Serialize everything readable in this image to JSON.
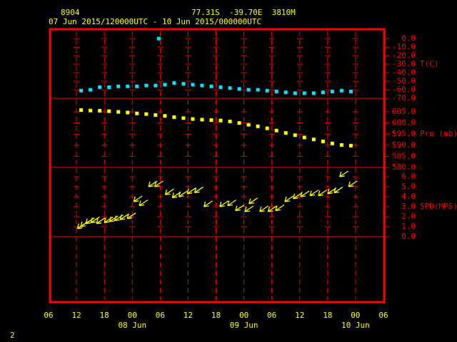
{
  "header": {
    "station": "8904",
    "location": "77.31S  -39.70E  3810M",
    "period": "07 Jun 2015/120000UTC - 10 Jun 2015/000000UTC"
  },
  "page_number": "2",
  "chart_data": [
    {
      "type": "scatter",
      "ylabel": "T(C)",
      "color": "#00e5ff",
      "xlim": [
        0,
        72
      ],
      "xticks": [
        {
          "value": 0,
          "label": "06"
        },
        {
          "value": 6,
          "label": "12"
        },
        {
          "value": 12,
          "label": "18"
        },
        {
          "value": 18,
          "label": "00"
        },
        {
          "value": 24,
          "label": "06"
        },
        {
          "value": 30,
          "label": "12"
        },
        {
          "value": 36,
          "label": "18"
        },
        {
          "value": 42,
          "label": "00"
        },
        {
          "value": 48,
          "label": "06"
        },
        {
          "value": 54,
          "label": "12"
        },
        {
          "value": 60,
          "label": "18"
        },
        {
          "value": 66,
          "label": "00"
        },
        {
          "value": 72,
          "label": "06"
        }
      ],
      "date_ticks": [
        {
          "value": 18,
          "label": "08 Jun"
        },
        {
          "value": 42,
          "label": "09 Jun"
        },
        {
          "value": 66,
          "label": "10 Jun"
        }
      ],
      "ylim": [
        -70,
        11
      ],
      "yticks": [
        {
          "value": 0,
          "label": "0.0"
        },
        {
          "value": -10,
          "label": "-10.0"
        },
        {
          "value": -20,
          "label": "-20.0"
        },
        {
          "value": -30,
          "label": "-30.0"
        },
        {
          "value": -40,
          "label": "-40.0"
        },
        {
          "value": -50,
          "label": "-50.0"
        },
        {
          "value": -60,
          "label": "-60.0"
        },
        {
          "value": -70,
          "label": "-70.0"
        }
      ],
      "x": [
        7,
        9,
        11,
        13,
        15,
        17,
        19,
        21,
        23,
        25,
        27,
        29,
        31,
        33,
        35,
        37,
        39,
        41,
        43,
        45,
        47,
        49,
        51,
        53,
        55,
        57,
        59,
        61,
        63,
        65,
        23.7
      ],
      "values": [
        -61,
        -60,
        -57,
        -57,
        -56,
        -56,
        -56,
        -55,
        -55,
        -54,
        -52,
        -53,
        -54,
        -55,
        -56,
        -57,
        -58,
        -59,
        -60,
        -60,
        -61,
        -62,
        -63,
        -64,
        -64,
        -64,
        -63,
        -62,
        -61,
        -62,
        0
      ]
    },
    {
      "type": "scatter",
      "ylabel": "Pre (mb)",
      "color": "#ffff00",
      "ylim": [
        580,
        611.1
      ],
      "yticks": [
        {
          "value": 605,
          "label": "605.0"
        },
        {
          "value": 600,
          "label": "600.0"
        },
        {
          "value": 595,
          "label": "595.0"
        },
        {
          "value": 590,
          "label": "590.0"
        },
        {
          "value": 585,
          "label": "585.0"
        },
        {
          "value": 580,
          "label": "580.0"
        }
      ],
      "x": [
        7,
        9,
        11,
        13,
        15,
        17,
        19,
        21,
        23,
        25,
        27,
        29,
        31,
        33,
        35,
        37,
        39,
        41,
        43,
        45,
        47,
        49,
        51,
        53,
        55,
        57,
        59,
        61,
        63,
        65
      ],
      "values": [
        605.8,
        605.6,
        605.5,
        605.3,
        605,
        604.7,
        604.3,
        604,
        603.6,
        603.2,
        602.6,
        602.2,
        601.8,
        601.5,
        601.3,
        601.1,
        600.7,
        600,
        599.2,
        598.5,
        597.6,
        596.6,
        595.5,
        594.5,
        593.5,
        592.6,
        591.7,
        590.8,
        590.1,
        589.8
      ]
    },
    {
      "type": "arrows",
      "ylabel": "SPD(MPS)",
      "color": "#ffff00",
      "ylim": [
        -6.57,
        6.93
      ],
      "yticks": [
        {
          "value": 6,
          "label": "6.0"
        },
        {
          "value": 5,
          "label": "5.0"
        },
        {
          "value": 4,
          "label": "4.0"
        },
        {
          "value": 3,
          "label": "3.0"
        },
        {
          "value": 2,
          "label": "2.0"
        },
        {
          "value": 1,
          "label": "1.0"
        },
        {
          "value": 0,
          "label": "0.0"
        }
      ],
      "x": [
        6.2,
        6.9,
        8,
        9.1,
        10.3,
        12,
        13.1,
        14.2,
        15.4,
        16.9,
        18.3,
        19.5,
        21.5,
        22.8,
        25.1,
        26.6,
        28,
        29.8,
        31.4,
        33.4,
        36.8,
        38.5,
        40.2,
        42.2,
        43.1,
        45.4,
        47.2,
        48.8,
        50.8,
        52.6,
        54.2,
        56.2,
        58,
        60,
        61.4,
        62.6,
        64.5
      ],
      "values": [
        0.8,
        1.0,
        1.3,
        1.4,
        1.3,
        1.4,
        1.5,
        1.6,
        1.7,
        1.8,
        3.5,
        3.1,
        5.0,
        5.0,
        4.2,
        3.9,
        4.0,
        4.3,
        4.4,
        3.0,
        3.0,
        3.1,
        2.6,
        2.5,
        3.3,
        2.5,
        2.5,
        2.6,
        3.5,
        3.8,
        4.0,
        4.1,
        4.1,
        4.3,
        4.4,
        6.0,
        5.0
      ]
    }
  ]
}
